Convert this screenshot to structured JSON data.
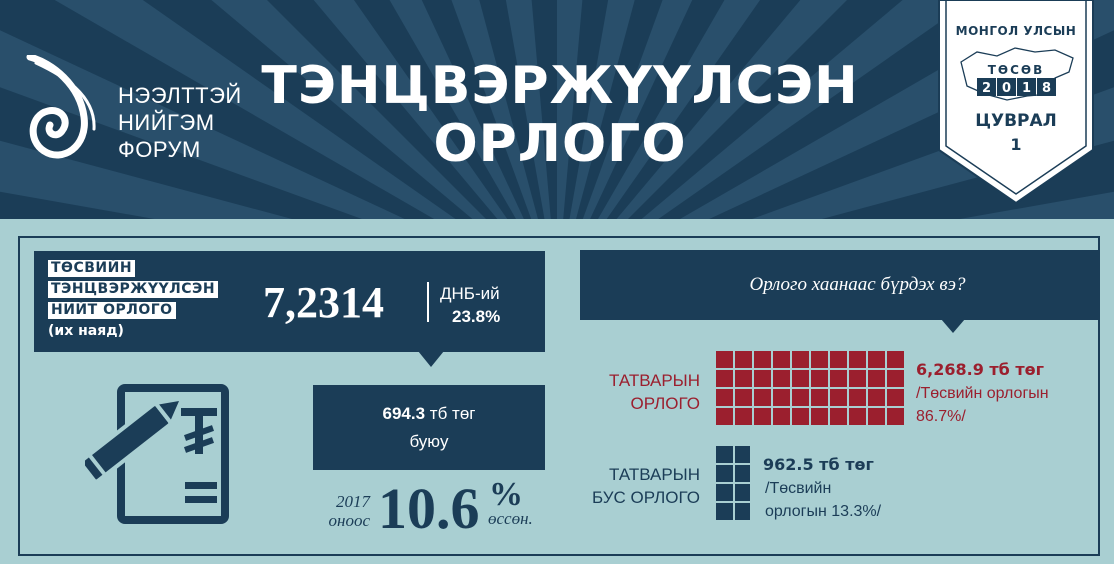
{
  "header": {
    "org": [
      "НЭЭЛТТЭЙ",
      "НИЙГЭМ",
      "ФОРУМ"
    ],
    "title": [
      "ТЭНЦВЭРЖҮҮЛСЭН",
      "ОРЛОГО"
    ],
    "badge": {
      "country": "МОНГОЛ УЛСЫН",
      "budget": "ТӨСӨВ",
      "year": [
        "2",
        "0",
        "1",
        "8"
      ],
      "series": "ЦУВРАЛ",
      "number": "1"
    }
  },
  "balanced_income": {
    "label": [
      "ТӨСВИЙН",
      "ТЭНЦВЭРЖҮҮЛСЭН",
      "НИЙТ ОРЛОГО"
    ],
    "unit_note": "(их наяд)",
    "value": "7,2314",
    "gdp_label": "ДНБ-ий",
    "gdp_value": "23.8%"
  },
  "growth": {
    "amount_bold": "694.3",
    "amount_unit": " тб төг",
    "or": "буюу",
    "year": "2017",
    "from": "оноос",
    "pct": "10.6",
    "pct_sign": "%",
    "grew": "өссөн."
  },
  "composition": {
    "question": "Орлого хаанаас бүрдэх вэ?",
    "tax": {
      "label": [
        "ТАТВАРЫН",
        "ОРЛОГО"
      ],
      "amount": "6,268.9 тб төг",
      "share": [
        "/Төсвийн орлогын",
        "86.7%/"
      ],
      "color": "#9b1f2e"
    },
    "non_tax": {
      "label": [
        "ТАТВАРЫН",
        "БУС ОРЛОГО"
      ],
      "amount": "962.5 тб төг",
      "share": [
        "/Төсвийн",
        "орлогын 13.3%/"
      ],
      "color": "#1b3d57"
    }
  },
  "icons": {
    "logo": "spiral-logo-icon",
    "document": "document-pen-icon",
    "currency": "tugrik-sign-icon",
    "map": "mongolia-map-icon"
  },
  "colors": {
    "navy": "#1b3d57",
    "teal_bg": "#a9cfd2",
    "crimson": "#9b1f2e"
  }
}
